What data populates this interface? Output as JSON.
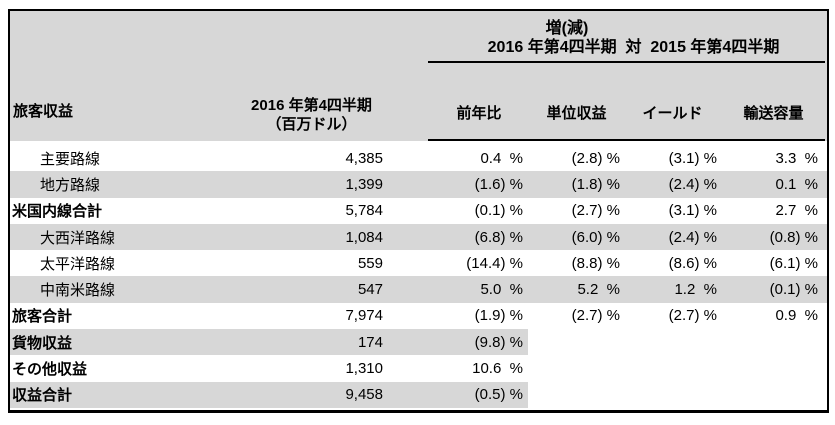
{
  "header": {
    "change_title": "増(減)",
    "comparison_title": "2016 年第4四半期  対  2015 年第4四半期",
    "row_label_header": "旅客収益",
    "amount_header_line1": "2016 年第4四半期",
    "amount_header_line2": "（百万ドル）",
    "metric_headers": {
      "yoy": "前年比",
      "unit_revenue": "単位収益",
      "yield": "イールド",
      "capacity": "輸送容量"
    }
  },
  "colors": {
    "band_gray": "#d7d7d7",
    "border_black": "#000000"
  },
  "rows": [
    {
      "label": "主要路線",
      "amount": "4,385",
      "yoy": "0.4  %",
      "unit_revenue": "(2.8) %",
      "yield": "(3.1) %",
      "capacity": "3.3  %"
    },
    {
      "label": "地方路線",
      "amount": "1,399",
      "yoy": "(1.6) %",
      "unit_revenue": "(1.8) %",
      "yield": "(2.4) %",
      "capacity": "0.1  %"
    },
    {
      "label": "米国内線合計",
      "amount": "5,784",
      "yoy": "(0.1) %",
      "unit_revenue": "(2.7) %",
      "yield": "(3.1) %",
      "capacity": "2.7  %"
    },
    {
      "label": "大西洋路線",
      "amount": "1,084",
      "yoy": "(6.8) %",
      "unit_revenue": "(6.0) %",
      "yield": "(2.4) %",
      "capacity": "(0.8) %"
    },
    {
      "label": "太平洋路線",
      "amount": "559",
      "yoy": "(14.4) %",
      "unit_revenue": "(8.8) %",
      "yield": "(8.6) %",
      "capacity": "(6.1) %"
    },
    {
      "label": "中南米路線",
      "amount": "547",
      "yoy": "5.0  %",
      "unit_revenue": "5.2  %",
      "yield": "1.2  %",
      "capacity": "(0.1) %"
    },
    {
      "label": "旅客合計",
      "amount": "7,974",
      "yoy": "(1.9) %",
      "unit_revenue": "(2.7) %",
      "yield": "(2.7) %",
      "capacity": "0.9  %"
    },
    {
      "label": "貨物収益",
      "amount": "174",
      "yoy": "(9.8) %",
      "unit_revenue": "",
      "yield": "",
      "capacity": ""
    },
    {
      "label": "その他収益",
      "amount": "1,310",
      "yoy": "10.6  %",
      "unit_revenue": "",
      "yield": "",
      "capacity": ""
    },
    {
      "label": "収益合計",
      "amount": "9,458",
      "yoy": "(0.5) %",
      "unit_revenue": "",
      "yield": "",
      "capacity": ""
    }
  ]
}
